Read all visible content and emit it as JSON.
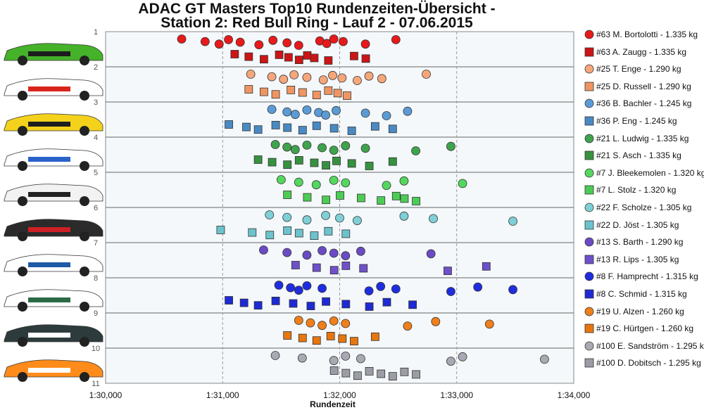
{
  "title_line1": "ADAC GT Masters Top10 Rundenzeiten-Übersicht -",
  "title_line2": "Station 2: Red Bull Ring - Lauf 2 - 07.06.2015",
  "chart_data": {
    "type": "scatter",
    "xlabel": "Rundenzeit",
    "ylabel": "",
    "xlim": [
      "1:30,000",
      "1:34,000"
    ],
    "xlim_seconds": [
      90.0,
      94.0
    ],
    "x_ticks": [
      "1:30,000",
      "1:31,000",
      "1:32,000",
      "1:33,000",
      "1:34,000"
    ],
    "y_ticks": [
      "1",
      "2",
      "3",
      "4",
      "5",
      "6",
      "7",
      "8",
      "9",
      "10",
      "11"
    ],
    "grid": "vertical dashed lines",
    "legend_position": "right",
    "series": [
      {
        "name": "#63 M. Bortolotti - 1.335 kg",
        "marker": "circle",
        "color": "#e8191b",
        "values": [
          "1:30,65",
          "1:30,85",
          "1:30,97",
          "1:31,05",
          "1:31,15",
          "1:31,31",
          "1:31,43",
          "1:31,55",
          "1:31,65",
          "1:31,83",
          "1:31,89",
          "1:31,95",
          "1:32,03",
          "1:32,22",
          "1:32,48"
        ]
      },
      {
        "name": "#63 A. Zaugg - 1.335 kg",
        "marker": "square",
        "color": "#cc1517",
        "values": [
          "1:31,10",
          "1:31,22",
          "1:31,35",
          "1:31,48",
          "1:31,56",
          "1:31,65",
          "1:31,72",
          "1:31,78",
          "1:31,90",
          "1:32,12",
          "1:32,22"
        ]
      },
      {
        "name": "#25 T. Enge - 1.290 kg",
        "marker": "circle",
        "color": "#f5a67a",
        "values": [
          "1:31,24",
          "1:31,42",
          "1:31,52",
          "1:31,61",
          "1:31,72",
          "1:31,86",
          "1:31,94",
          "1:32,02",
          "1:32,15",
          "1:32,25",
          "1:32,36",
          "1:32,74"
        ]
      },
      {
        "name": "#25 D. Russell - 1.290 kg",
        "marker": "square",
        "color": "#f09562",
        "values": [
          "1:31,22",
          "1:31,35",
          "1:31,45",
          "1:31,58",
          "1:31,68",
          "1:31,80",
          "1:31,90",
          "1:31,98",
          "1:32,06"
        ]
      },
      {
        "name": "#36 B. Bachler - 1.245 kg",
        "marker": "circle",
        "color": "#5b9bd5",
        "values": [
          "1:31,42",
          "1:31,55",
          "1:31,62",
          "1:31,72",
          "1:31,82",
          "1:31,88",
          "1:31,97",
          "1:32,22",
          "1:32,40",
          "1:32,58"
        ]
      },
      {
        "name": "#36 P. Eng - 1.245 kg",
        "marker": "square",
        "color": "#4a8ac4",
        "values": [
          "1:31,05",
          "1:31,20",
          "1:31,30",
          "1:31,45",
          "1:31,55",
          "1:31,68",
          "1:31,80",
          "1:31,95",
          "1:32,10",
          "1:32,30",
          "1:32,45"
        ]
      },
      {
        "name": "#21 L. Ludwig - 1.335 kg",
        "marker": "circle",
        "color": "#3fa34d",
        "values": [
          "1:31,45",
          "1:31,55",
          "1:31,62",
          "1:31,72",
          "1:31,85",
          "1:31,95",
          "1:32,05",
          "1:32,22",
          "1:32,65",
          "1:32,95"
        ]
      },
      {
        "name": "#21 S. Asch - 1.335 kg",
        "marker": "square",
        "color": "#36923f",
        "values": [
          "1:31,30",
          "1:31,42",
          "1:31,55",
          "1:31,65",
          "1:31,78",
          "1:31,88",
          "1:31,97",
          "1:32,10",
          "1:32,25",
          "1:32,45"
        ]
      },
      {
        "name": "#7 J. Bleekemolen - 1.320 kg",
        "marker": "circle",
        "color": "#54d75e",
        "values": [
          "1:31,50",
          "1:31,65",
          "1:31,80",
          "1:31,95",
          "1:32,05",
          "1:32,40",
          "1:32,55",
          "1:33,05"
        ]
      },
      {
        "name": "#7 L. Stolz - 1.320 kg",
        "marker": "square",
        "color": "#4ccc55",
        "values": [
          "1:31,55",
          "1:31,72",
          "1:31,88",
          "1:32,00",
          "1:32,18",
          "1:32,35",
          "1:32,48",
          "1:32,55",
          "1:32,65"
        ]
      },
      {
        "name": "#22 F. Scholze - 1.305 kg",
        "marker": "circle",
        "color": "#7fcfd6",
        "values": [
          "1:31,40",
          "1:31,55",
          "1:31,72",
          "1:31,88",
          "1:32,00",
          "1:32,15",
          "1:32,55",
          "1:32,80",
          "1:33,48"
        ]
      },
      {
        "name": "#22 D. Jöst - 1.305 kg",
        "marker": "square",
        "color": "#6cc3cc",
        "values": [
          "1:30,98",
          "1:31,25",
          "1:31,40",
          "1:31,55",
          "1:31,65",
          "1:31,78",
          "1:31,90",
          "1:32,05"
        ]
      },
      {
        "name": "#13 S. Barth - 1.290 kg",
        "marker": "circle",
        "color": "#6a4bc4",
        "values": [
          "1:31,35",
          "1:31,55",
          "1:31,72",
          "1:31,85",
          "1:31,95",
          "1:32,05",
          "1:32,18",
          "1:32,78"
        ]
      },
      {
        "name": "#13 R. Lips - 1.305 kg",
        "marker": "square",
        "color": "#6e51c9",
        "values": [
          "1:31,62",
          "1:31,80",
          "1:31,95",
          "1:32,05",
          "1:32,20",
          "1:32,92",
          "1:33,25"
        ]
      },
      {
        "name": "#8 F. Hamprecht - 1.315 kg",
        "marker": "circle",
        "color": "#1f2de0",
        "values": [
          "1:31,48",
          "1:31,58",
          "1:31,65",
          "1:31,72",
          "1:31,85",
          "1:32,25",
          "1:32,35",
          "1:32,48",
          "1:32,95",
          "1:33,18",
          "1:33,48"
        ]
      },
      {
        "name": "#8 C. Schmid - 1.315 kg",
        "marker": "square",
        "color": "#1e2ad4",
        "values": [
          "1:31,05",
          "1:31,18",
          "1:31,30",
          "1:31,45",
          "1:31,60",
          "1:31,75",
          "1:31,88",
          "1:32,05",
          "1:32,25",
          "1:32,40",
          "1:32,62"
        ]
      },
      {
        "name": "#19 U. Alzen - 1.260 kg",
        "marker": "circle",
        "color": "#ef7f1a",
        "values": [
          "1:31,65",
          "1:31,75",
          "1:31,85",
          "1:31,95",
          "1:32,05",
          "1:32,58",
          "1:32,82",
          "1:33,28"
        ]
      },
      {
        "name": "#19 C. Hürtgen - 1.260 kg",
        "marker": "square",
        "color": "#e6760f",
        "values": [
          "1:31,55",
          "1:31,68",
          "1:31,80",
          "1:31,92",
          "1:32,02",
          "1:32,12",
          "1:32,30"
        ]
      },
      {
        "name": "#100 E. Sandström - 1.295 kg",
        "marker": "circle",
        "color": "#a9a9b3",
        "values": [
          "1:31,45",
          "1:31,68",
          "1:31,95",
          "1:32,05",
          "1:32,18",
          "1:32,95",
          "1:33,05",
          "1:33,75"
        ]
      },
      {
        "name": "#100 D. Dobitsch - 1.295 kg",
        "marker": "square",
        "color": "#9c9ca6",
        "values": [
          "1:31,95",
          "1:32,05",
          "1:32,15",
          "1:32,25",
          "1:32,35",
          "1:32,45",
          "1:32,55",
          "1:32,65"
        ]
      }
    ]
  }
}
